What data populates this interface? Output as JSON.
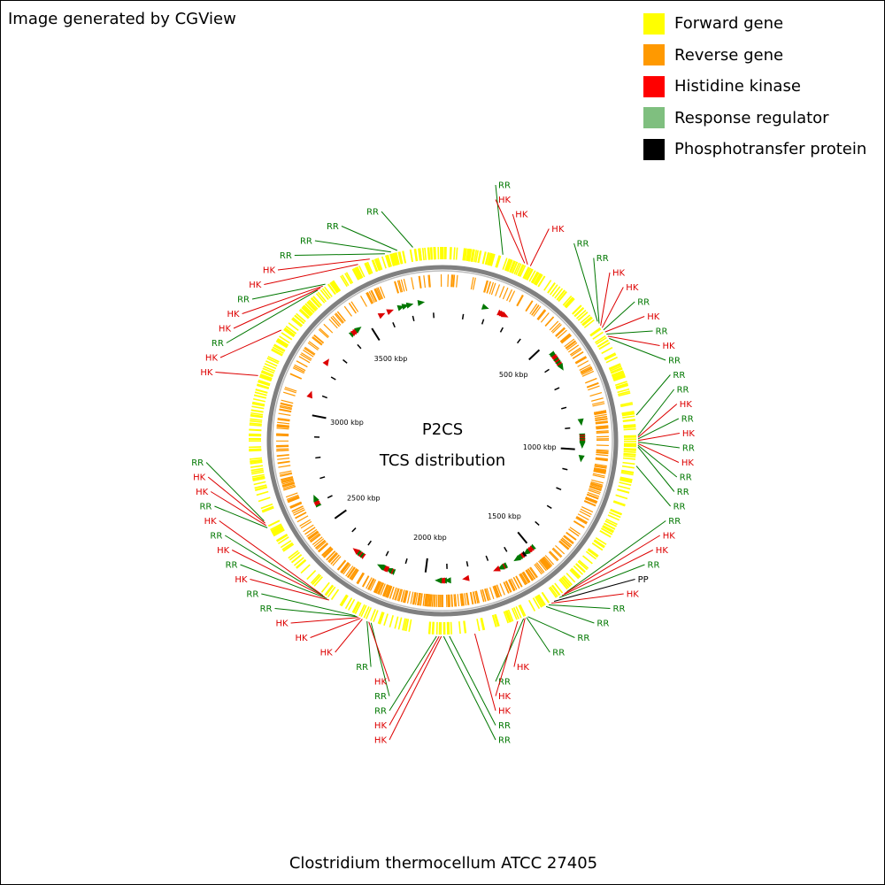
{
  "credit": "Image generated by CGView",
  "legend": [
    {
      "label": "Forward gene",
      "color": "#ffff00"
    },
    {
      "label": "Reverse gene",
      "color": "#ff9900"
    },
    {
      "label": "Histidine kinase",
      "color": "#ff0000"
    },
    {
      "label": "Response regulator",
      "color": "#7fbf7f"
    },
    {
      "label": "Phosphotransfer protein",
      "color": "#000000"
    }
  ],
  "center": {
    "line1": "P2CS",
    "line2": "TCS distribution"
  },
  "footer": "Clostridium thermocellum ATCC 27405",
  "genome": {
    "length_kbp": 3843,
    "tick_labels": [
      "500 kbp",
      "1000 kbp",
      "1500 kbp",
      "2000 kbp",
      "2500 kbp",
      "3000 kbp",
      "3500 kbp"
    ]
  },
  "colors": {
    "hk": "#dd0000",
    "rr": "#007700",
    "pp": "#000000",
    "forward": "#ffff00",
    "reverse": "#ff9900",
    "backbone": "#808080"
  },
  "features": [
    {
      "label": "RR",
      "pos_kbp": 192
    },
    {
      "label": "HK",
      "pos_kbp": 265
    },
    {
      "label": "HK",
      "pos_kbp": 275
    },
    {
      "label": "HK",
      "pos_kbp": 285
    },
    {
      "label": "RR",
      "pos_kbp": 560
    },
    {
      "label": "RR",
      "pos_kbp": 568
    },
    {
      "label": "HK",
      "pos_kbp": 576
    },
    {
      "label": "HK",
      "pos_kbp": 584
    },
    {
      "label": "RR",
      "pos_kbp": 592
    },
    {
      "label": "HK",
      "pos_kbp": 600
    },
    {
      "label": "RR",
      "pos_kbp": 608
    },
    {
      "label": "HK",
      "pos_kbp": 616
    },
    {
      "label": "RR",
      "pos_kbp": 624
    },
    {
      "label": "RR",
      "pos_kbp": 880
    },
    {
      "label": "RR",
      "pos_kbp": 945
    },
    {
      "label": "HK",
      "pos_kbp": 950
    },
    {
      "label": "RR",
      "pos_kbp": 955
    },
    {
      "label": "HK",
      "pos_kbp": 960
    },
    {
      "label": "RR",
      "pos_kbp": 965
    },
    {
      "label": "HK",
      "pos_kbp": 970
    },
    {
      "label": "RR",
      "pos_kbp": 975
    },
    {
      "label": "RR",
      "pos_kbp": 980
    },
    {
      "label": "RR",
      "pos_kbp": 1040
    },
    {
      "label": "RR",
      "pos_kbp": 1500
    },
    {
      "label": "HK",
      "pos_kbp": 1510
    },
    {
      "label": "HK",
      "pos_kbp": 1520
    },
    {
      "label": "RR",
      "pos_kbp": 1530
    },
    {
      "label": "PP",
      "pos_kbp": 1550
    },
    {
      "label": "HK",
      "pos_kbp": 1560
    },
    {
      "label": "RR",
      "pos_kbp": 1570
    },
    {
      "label": "RR",
      "pos_kbp": 1580
    },
    {
      "label": "RR",
      "pos_kbp": 1645
    },
    {
      "label": "RR",
      "pos_kbp": 1650
    },
    {
      "label": "HK",
      "pos_kbp": 1655
    },
    {
      "label": "RR",
      "pos_kbp": 1660
    },
    {
      "label": "HK",
      "pos_kbp": 1680
    },
    {
      "label": "HK",
      "pos_kbp": 1820
    },
    {
      "label": "RR",
      "pos_kbp": 1900
    },
    {
      "label": "RR",
      "pos_kbp": 1918
    },
    {
      "label": "HK",
      "pos_kbp": 1925
    },
    {
      "label": "HK",
      "pos_kbp": 1932
    },
    {
      "label": "RR",
      "pos_kbp": 1940
    },
    {
      "label": "RR",
      "pos_kbp": 2150
    },
    {
      "label": "HK",
      "pos_kbp": 2158
    },
    {
      "label": "RR",
      "pos_kbp": 2164
    },
    {
      "label": "HK",
      "pos_kbp": 2180
    },
    {
      "label": "HK",
      "pos_kbp": 2186
    },
    {
      "label": "HK",
      "pos_kbp": 2192
    },
    {
      "label": "RR",
      "pos_kbp": 2198
    },
    {
      "label": "RR",
      "pos_kbp": 2204
    },
    {
      "label": "HK",
      "pos_kbp": 2300
    },
    {
      "label": "RR",
      "pos_kbp": 2308
    },
    {
      "label": "HK",
      "pos_kbp": 2316
    },
    {
      "label": "RR",
      "pos_kbp": 2324
    },
    {
      "label": "HK",
      "pos_kbp": 2332
    },
    {
      "label": "RR",
      "pos_kbp": 2600
    },
    {
      "label": "HK",
      "pos_kbp": 2608
    },
    {
      "label": "HK",
      "pos_kbp": 2616
    },
    {
      "label": "RR",
      "pos_kbp": 2624
    },
    {
      "label": "HK",
      "pos_kbp": 3090
    },
    {
      "label": "HK",
      "pos_kbp": 3250
    },
    {
      "label": "RR",
      "pos_kbp": 3420
    },
    {
      "label": "HK",
      "pos_kbp": 3430
    },
    {
      "label": "HK",
      "pos_kbp": 3440
    },
    {
      "label": "RR",
      "pos_kbp": 3450
    },
    {
      "label": "HK",
      "pos_kbp": 3570
    },
    {
      "label": "HK",
      "pos_kbp": 3610
    },
    {
      "label": "RR",
      "pos_kbp": 3660
    },
    {
      "label": "RR",
      "pos_kbp": 3680
    },
    {
      "label": "RR",
      "pos_kbp": 3700
    },
    {
      "label": "RR",
      "pos_kbp": 3750
    }
  ]
}
